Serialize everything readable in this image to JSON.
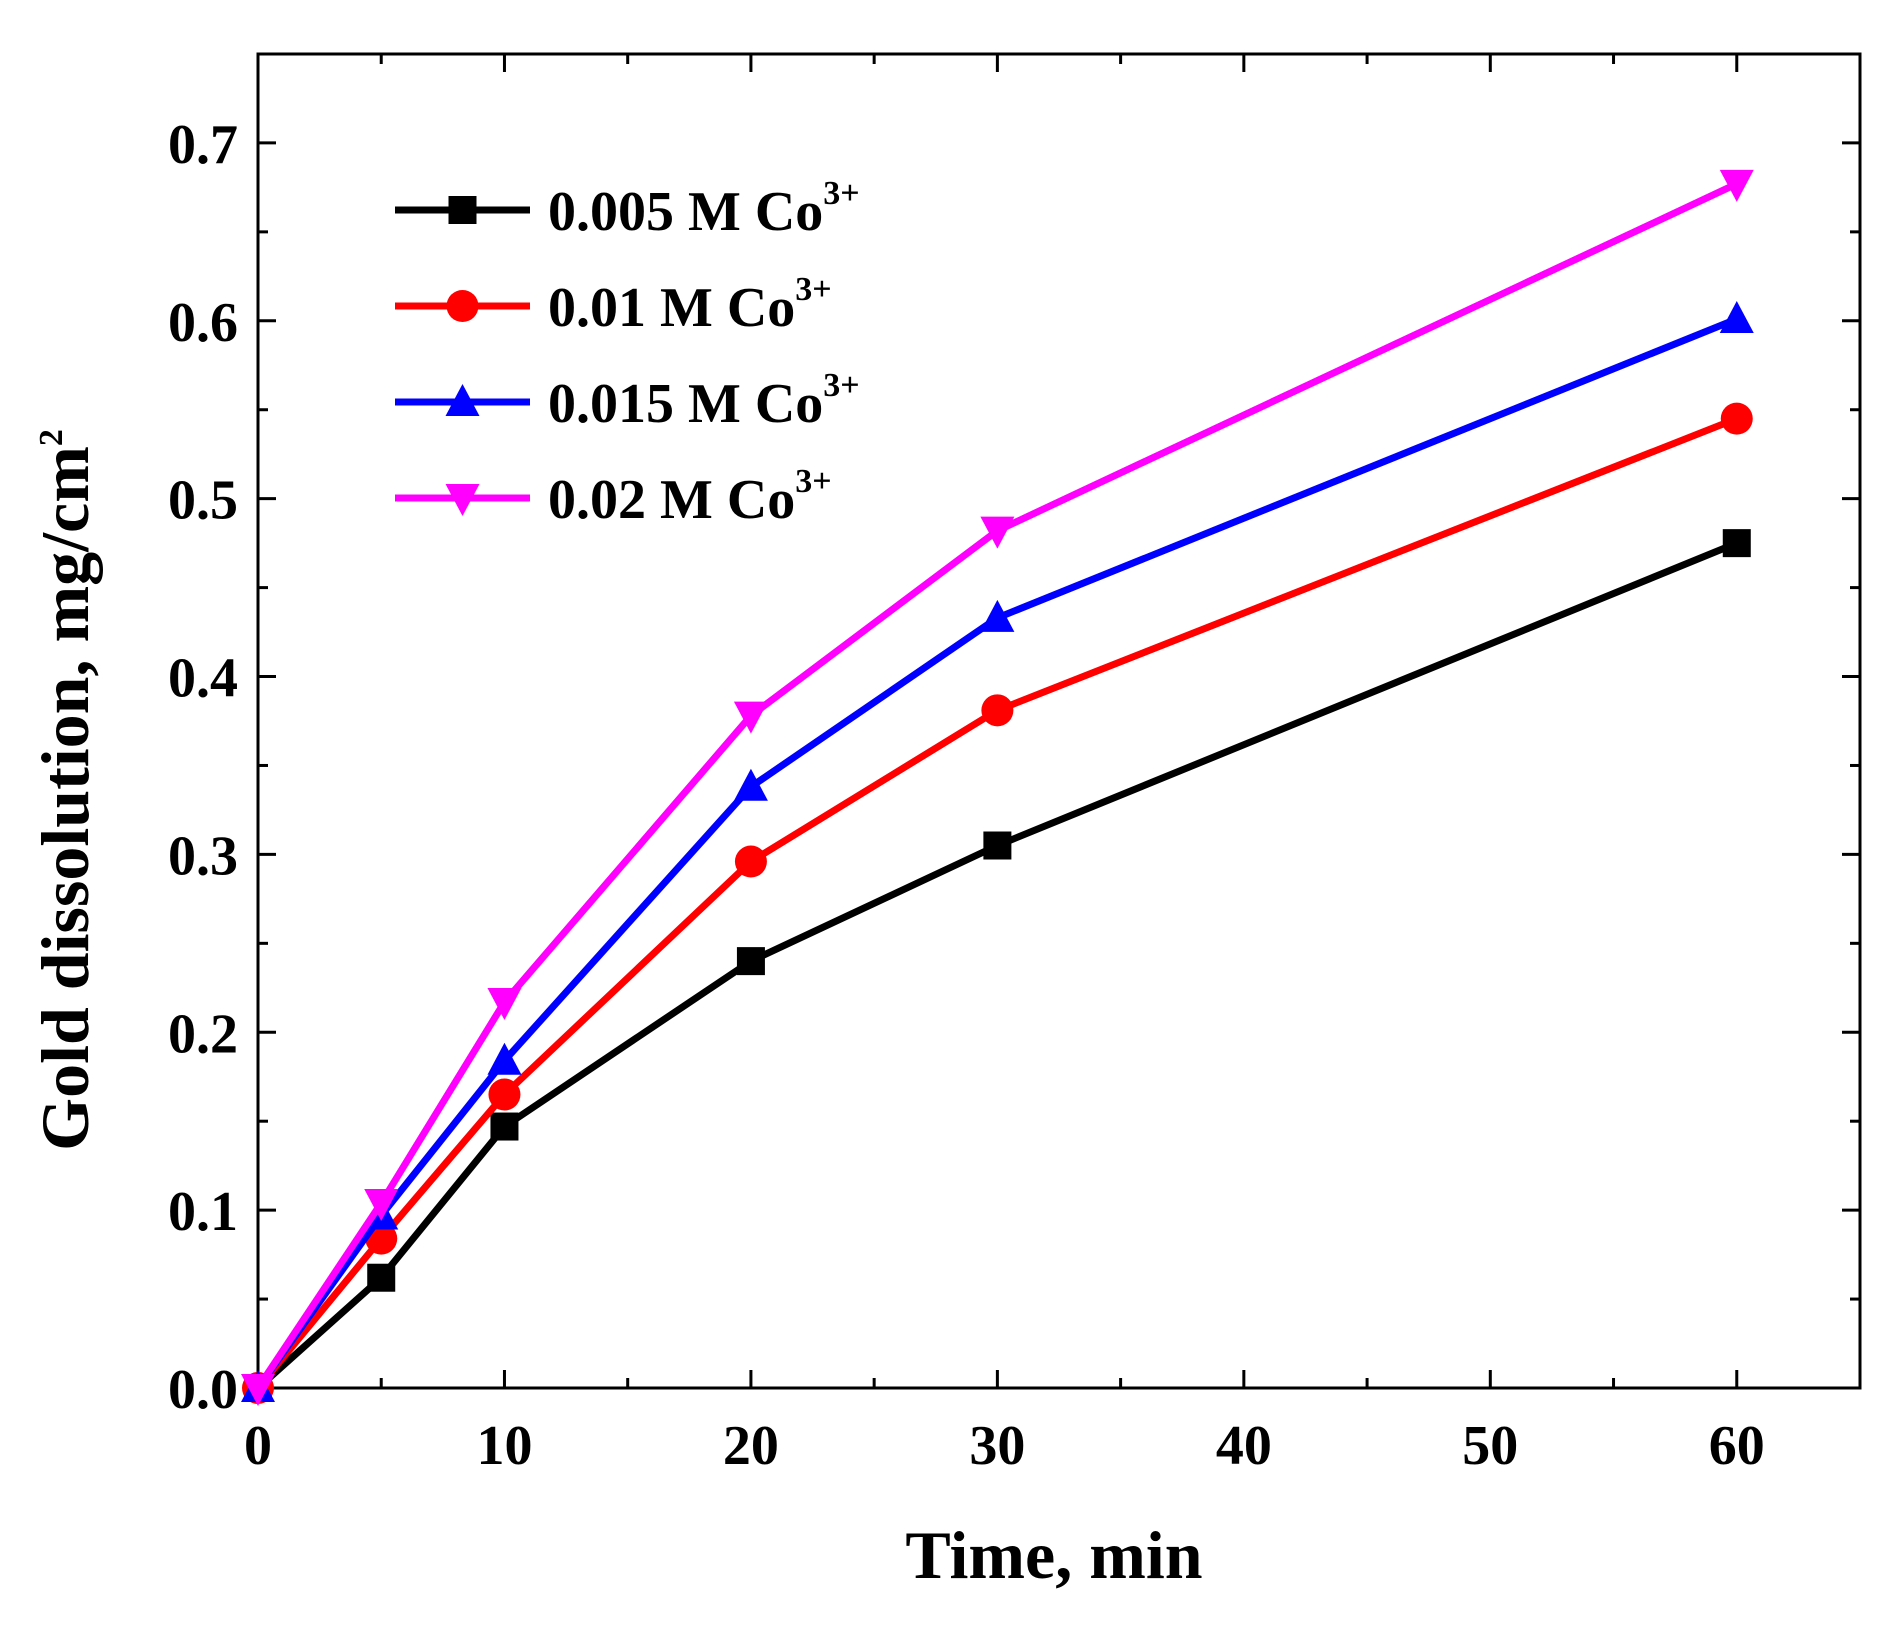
{
  "chart_data": {
    "type": "line",
    "title": "",
    "xlabel": "Time, min",
    "ylabel": {
      "main": "Gold dissolution, mg/cm",
      "sup": "2"
    },
    "xlim": [
      0,
      65
    ],
    "ylim": [
      0,
      0.75
    ],
    "xticks": [
      0,
      10,
      20,
      30,
      40,
      50,
      60
    ],
    "xtick_labels": [
      "0",
      "10",
      "20",
      "30",
      "40",
      "50",
      "60"
    ],
    "yticks": [
      0.0,
      0.1,
      0.2,
      0.3,
      0.4,
      0.5,
      0.6,
      0.7
    ],
    "ytick_labels": [
      "0.0",
      "0.1",
      "0.2",
      "0.3",
      "0.4",
      "0.5",
      "0.6",
      "0.7"
    ],
    "x": [
      0,
      5,
      10,
      20,
      30,
      60
    ],
    "legend_position": "top-left",
    "grid": false,
    "series": [
      {
        "name": "0.005 M Co",
        "sup": "3+",
        "color": "#000000",
        "marker": "square",
        "values": [
          0,
          0.062,
          0.147,
          0.24,
          0.305,
          0.475
        ]
      },
      {
        "name": "0.01 M Co",
        "sup": "3+",
        "color": "#ff0000",
        "marker": "circle",
        "values": [
          0,
          0.084,
          0.165,
          0.296,
          0.381,
          0.545
        ]
      },
      {
        "name": "0.015 M Co",
        "sup": "3+",
        "color": "#0000ff",
        "marker": "triangle-up",
        "values": [
          0,
          0.097,
          0.184,
          0.338,
          0.433,
          0.601
        ]
      },
      {
        "name": "0.02 M Co",
        "sup": "3+",
        "color": "#ff00ff",
        "marker": "triangle-down",
        "values": [
          0,
          0.104,
          0.217,
          0.378,
          0.482,
          0.677
        ]
      }
    ]
  }
}
